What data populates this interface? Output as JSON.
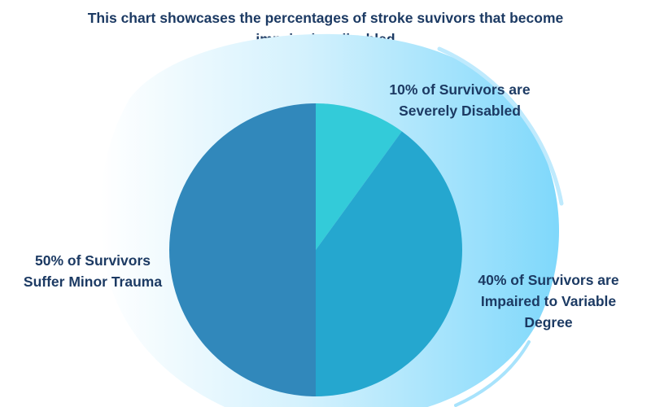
{
  "chart_data": {
    "type": "pie",
    "title": "",
    "subtitle": "This chart showcases the percentages of stroke suvivors that become impaired or disabled",
    "slices": [
      {
        "value": 10,
        "label": "10% of Survivors are Severely Disabled",
        "color": "#33cbd9"
      },
      {
        "value": 40,
        "label": "40% of Survivors are Impaired to Variable Degree",
        "color": "#25a7cf"
      },
      {
        "value": 50,
        "label": "50% of Survivors Suffer Minor Trauma",
        "color": "#3188bb"
      }
    ],
    "start_angle": "12 o'clock",
    "direction": "clockwise"
  },
  "colors": {
    "background_splash_start": "#ffffff",
    "background_splash_end": "#7fd8fb",
    "text": "#1c3a63"
  }
}
